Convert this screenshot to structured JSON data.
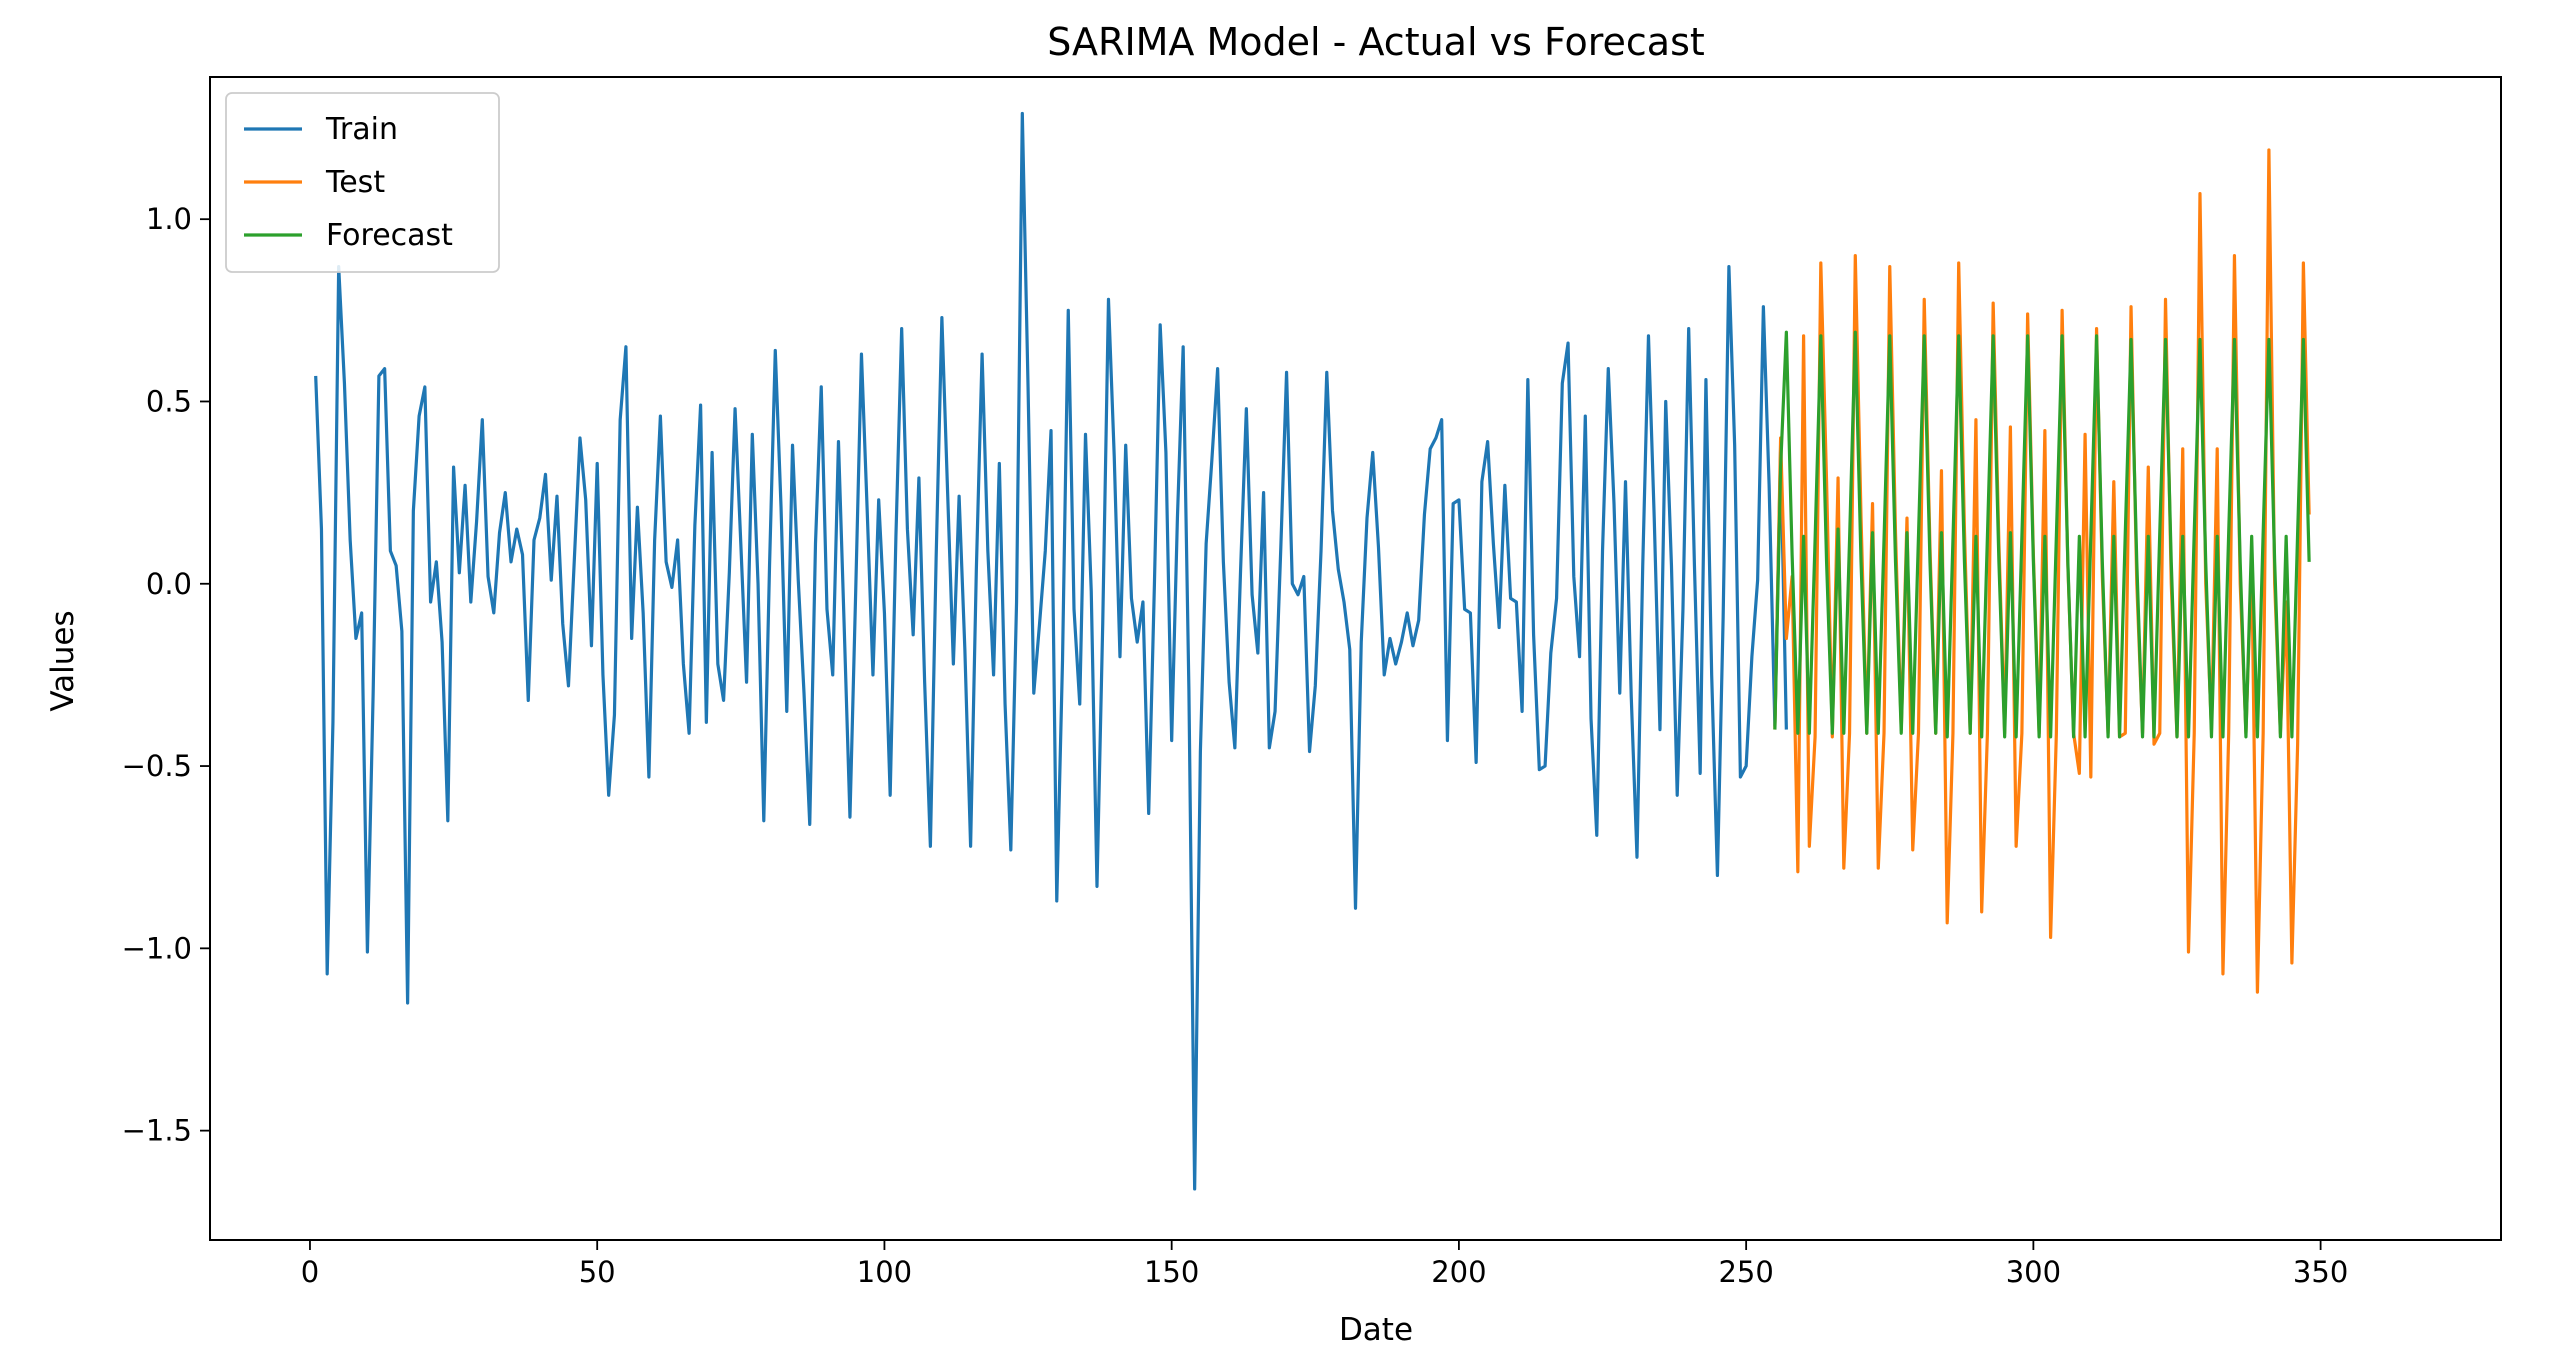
{
  "chart_data": {
    "type": "line",
    "title": "SARIMA Model - Actual vs Forecast",
    "xlabel": "Date",
    "ylabel": "Values",
    "xlim": [
      -17.4,
      381.4
    ],
    "ylim": [
      -1.8,
      1.39
    ],
    "x_ticks": [
      0,
      50,
      100,
      150,
      200,
      250,
      300,
      350
    ],
    "x_tick_labels": [
      "0",
      "50",
      "100",
      "150",
      "200",
      "250",
      "300",
      "350"
    ],
    "y_ticks": [
      -1.5,
      -1.0,
      -0.5,
      0.0,
      0.5,
      1.0
    ],
    "y_tick_labels": [
      "−1.5",
      "−1.0",
      "−0.5",
      "0.0",
      "0.5",
      "1.0"
    ],
    "grid": false,
    "legend_position": "top-left",
    "series": [
      {
        "name": "Train",
        "color": "#1f77b4",
        "x_start": 1,
        "values": [
          0.57,
          0.15,
          -1.07,
          -0.38,
          0.87,
          0.55,
          0.12,
          -0.15,
          -0.08,
          -1.01,
          -0.3,
          0.57,
          0.59,
          0.09,
          0.05,
          -0.13,
          -1.15,
          0.2,
          0.46,
          0.54,
          -0.05,
          0.06,
          -0.16,
          -0.65,
          0.32,
          0.03,
          0.27,
          -0.05,
          0.17,
          0.45,
          0.02,
          -0.08,
          0.14,
          0.25,
          0.06,
          0.15,
          0.08,
          -0.32,
          0.12,
          0.18,
          0.3,
          0.01,
          0.24,
          -0.11,
          -0.28,
          0.06,
          0.4,
          0.23,
          -0.17,
          0.33,
          -0.25,
          -0.58,
          -0.36,
          0.45,
          0.65,
          -0.15,
          0.21,
          -0.08,
          -0.53,
          0.12,
          0.46,
          0.06,
          -0.01,
          0.12,
          -0.22,
          -0.41,
          0.16,
          0.49,
          -0.38,
          0.36,
          -0.22,
          -0.32,
          0.03,
          0.48,
          0.11,
          -0.27,
          0.41,
          0.0,
          -0.65,
          0.05,
          0.64,
          0.21,
          -0.35,
          0.38,
          0.01,
          -0.3,
          -0.66,
          0.11,
          0.54,
          -0.07,
          -0.25,
          0.39,
          -0.12,
          -0.64,
          -0.02,
          0.63,
          0.2,
          -0.25,
          0.23,
          -0.08,
          -0.58,
          0.13,
          0.7,
          0.15,
          -0.14,
          0.29,
          -0.27,
          -0.72,
          0.07,
          0.73,
          0.25,
          -0.22,
          0.24,
          -0.18,
          -0.72,
          0.04,
          0.63,
          0.09,
          -0.25,
          0.33,
          -0.33,
          -0.73,
          -0.05,
          1.29,
          0.54,
          -0.3,
          -0.11,
          0.09,
          0.42,
          -0.87,
          -0.21,
          0.75,
          -0.07,
          -0.33,
          0.41,
          -0.02,
          -0.83,
          -0.11,
          0.78,
          0.35,
          -0.2,
          0.38,
          -0.04,
          -0.16,
          -0.05,
          -0.63,
          0.0,
          0.71,
          0.36,
          -0.43,
          0.18,
          0.65,
          -0.29,
          -1.66,
          -0.46,
          0.11,
          0.34,
          0.59,
          0.06,
          -0.27,
          -0.45,
          0.04,
          0.48,
          -0.03,
          -0.19,
          0.25,
          -0.45,
          -0.35,
          0.1,
          0.58,
          0.0,
          -0.03,
          0.02,
          -0.46,
          -0.28,
          0.09,
          0.58,
          0.2,
          0.04,
          -0.05,
          -0.18,
          -0.89,
          -0.16,
          0.18,
          0.36,
          0.1,
          -0.25,
          -0.15,
          -0.22,
          -0.16,
          -0.08,
          -0.17,
          -0.1,
          0.19,
          0.37,
          0.4,
          0.45,
          -0.43,
          0.22,
          0.23,
          -0.07,
          -0.08,
          -0.49,
          0.28,
          0.39,
          0.11,
          -0.12,
          0.27,
          -0.04,
          -0.05,
          -0.35,
          0.56,
          -0.14,
          -0.51,
          -0.5,
          -0.19,
          -0.04,
          0.55,
          0.66,
          0.02,
          -0.2,
          0.46,
          -0.37,
          -0.69,
          0.09,
          0.59,
          0.22,
          -0.3,
          0.28,
          -0.31,
          -0.75,
          0.05,
          0.68,
          0.18,
          -0.4,
          0.5,
          0.05,
          -0.58,
          -0.07,
          0.7,
          0.05,
          -0.52,
          0.56,
          -0.25,
          -0.8,
          -0.09,
          0.87,
          0.38,
          -0.53,
          -0.5,
          -0.2,
          0.01,
          0.76,
          0.27,
          -0.39,
          0.37,
          -0.4
        ]
      },
      {
        "name": "Test",
        "color": "#ff7f0e",
        "x_start": 255,
        "values": [
          -0.4,
          0.4,
          -0.15,
          0.02,
          -0.79,
          0.68,
          -0.72,
          -0.42,
          0.88,
          0.28,
          -0.42,
          0.29,
          -0.78,
          -0.41,
          0.9,
          0.18,
          -0.41,
          0.22,
          -0.78,
          -0.41,
          0.87,
          0.14,
          -0.4,
          0.18,
          -0.73,
          -0.41,
          0.78,
          0.1,
          -0.41,
          0.31,
          -0.93,
          -0.41,
          0.88,
          0.15,
          -0.41,
          0.45,
          -0.9,
          -0.41,
          0.77,
          0.11,
          -0.41,
          0.43,
          -0.72,
          -0.41,
          0.74,
          0.08,
          -0.41,
          0.42,
          -0.97,
          -0.41,
          0.75,
          0.05,
          -0.41,
          -0.52,
          0.41,
          -0.53,
          0.7,
          0.02,
          -0.41,
          0.28,
          -0.42,
          -0.41,
          0.76,
          0.0,
          -0.41,
          0.32,
          -0.44,
          -0.41,
          0.78,
          0.0,
          -0.42,
          0.37,
          -1.01,
          -0.41,
          1.07,
          0.0,
          -0.4,
          0.37,
          -1.07,
          -0.41,
          0.9,
          0.0,
          -0.41,
          0.07,
          -1.12,
          -0.41,
          1.19,
          0.0,
          -0.41,
          -0.05,
          -1.04,
          -0.44,
          0.88,
          0.19
        ]
      },
      {
        "name": "Forecast",
        "color": "#2ca02c",
        "x_start": 255,
        "values": [
          -0.4,
          0.32,
          0.69,
          0.08,
          -0.41,
          0.13,
          -0.41,
          0.12,
          0.68,
          0.06,
          -0.41,
          0.15,
          -0.41,
          0.12,
          0.69,
          0.06,
          -0.41,
          0.14,
          -0.41,
          0.12,
          0.68,
          0.06,
          -0.41,
          0.14,
          -0.41,
          0.13,
          0.68,
          0.06,
          -0.41,
          0.14,
          -0.42,
          0.12,
          0.68,
          0.06,
          -0.41,
          0.13,
          -0.42,
          0.13,
          0.68,
          0.06,
          -0.42,
          0.14,
          -0.42,
          0.13,
          0.68,
          0.06,
          -0.42,
          0.13,
          -0.42,
          0.13,
          0.68,
          0.06,
          -0.42,
          0.13,
          -0.42,
          0.13,
          0.68,
          0.06,
          -0.42,
          0.13,
          -0.42,
          0.14,
          0.67,
          0.06,
          -0.42,
          0.13,
          -0.42,
          0.14,
          0.67,
          0.06,
          -0.42,
          0.13,
          -0.42,
          0.14,
          0.67,
          0.06,
          -0.42,
          0.13,
          -0.42,
          0.14,
          0.67,
          0.06,
          -0.42,
          0.13,
          -0.42,
          0.14,
          0.67,
          0.06,
          -0.42,
          0.13,
          -0.42,
          0.14,
          0.67,
          0.06
        ]
      }
    ]
  }
}
